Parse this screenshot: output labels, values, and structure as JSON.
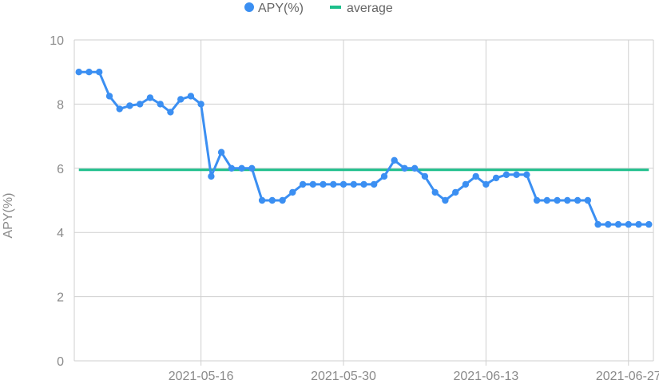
{
  "chart_data": {
    "type": "line",
    "title": "",
    "xlabel": "",
    "ylabel": "APY(%)",
    "ylim": [
      0,
      10
    ],
    "y_ticks": [
      "0",
      "2",
      "4",
      "6",
      "8",
      "10"
    ],
    "x_ticks": [
      "2021-05-16",
      "2021-05-30",
      "2021-06-13",
      "2021-06-27"
    ],
    "x_range": [
      "2021-05-04",
      "2021-06-29"
    ],
    "grid": true,
    "legend_position": "top-center",
    "series": [
      {
        "name": "APY(%)",
        "color": "#3b8ff2",
        "x": [
          "2021-05-04",
          "2021-05-05",
          "2021-05-06",
          "2021-05-07",
          "2021-05-08",
          "2021-05-09",
          "2021-05-10",
          "2021-05-11",
          "2021-05-12",
          "2021-05-13",
          "2021-05-14",
          "2021-05-15",
          "2021-05-16",
          "2021-05-17",
          "2021-05-18",
          "2021-05-19",
          "2021-05-20",
          "2021-05-21",
          "2021-05-22",
          "2021-05-23",
          "2021-05-24",
          "2021-05-25",
          "2021-05-26",
          "2021-05-27",
          "2021-05-28",
          "2021-05-29",
          "2021-05-30",
          "2021-05-31",
          "2021-06-01",
          "2021-06-02",
          "2021-06-03",
          "2021-06-04",
          "2021-06-05",
          "2021-06-06",
          "2021-06-07",
          "2021-06-08",
          "2021-06-09",
          "2021-06-10",
          "2021-06-11",
          "2021-06-12",
          "2021-06-13",
          "2021-06-14",
          "2021-06-15",
          "2021-06-16",
          "2021-06-17",
          "2021-06-18",
          "2021-06-19",
          "2021-06-20",
          "2021-06-21",
          "2021-06-22",
          "2021-06-23",
          "2021-06-24",
          "2021-06-25",
          "2021-06-26",
          "2021-06-27",
          "2021-06-28",
          "2021-06-29"
        ],
        "values": [
          9.0,
          9.0,
          9.0,
          8.25,
          7.85,
          7.95,
          8.0,
          8.2,
          8.0,
          7.75,
          8.15,
          8.25,
          8.0,
          5.75,
          6.5,
          6.0,
          6.0,
          6.0,
          5.0,
          5.0,
          5.0,
          5.25,
          5.5,
          5.5,
          5.5,
          5.5,
          5.5,
          5.5,
          5.5,
          5.5,
          5.75,
          6.25,
          6.0,
          6.0,
          5.75,
          5.25,
          5.0,
          5.25,
          5.5,
          5.75,
          5.5,
          5.7,
          5.8,
          5.8,
          5.8,
          5.0,
          5.0,
          5.0,
          5.0,
          5.0,
          5.0,
          4.25,
          4.25,
          4.25,
          4.25,
          4.25,
          4.25
        ]
      },
      {
        "name": "average",
        "color": "#1dbf8b",
        "x": [
          "2021-05-04",
          "2021-06-29"
        ],
        "values": [
          5.95,
          5.95
        ]
      }
    ]
  }
}
